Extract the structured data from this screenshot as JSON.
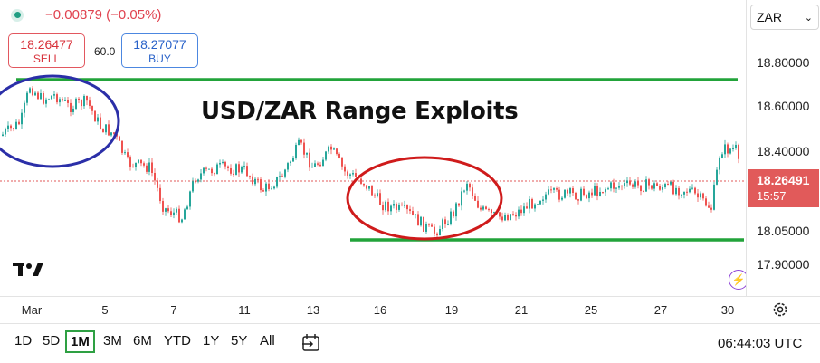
{
  "header": {
    "change": "−0.00879 (−0.05%)",
    "sell_price": "18.26477",
    "sell_label": "SELL",
    "spread": "60.0",
    "buy_price": "18.27077",
    "buy_label": "BUY"
  },
  "annotation_title": "USD/ZAR Range Exploits",
  "currency": "ZAR",
  "price_labels": [
    "18.80000",
    "18.60000",
    "18.40000",
    "18.05000",
    "17.90000"
  ],
  "current_price": "18.26491",
  "countdown": "15:57",
  "time_labels": [
    "Mar",
    "5",
    "7",
    "11",
    "13",
    "16",
    "19",
    "21",
    "25",
    "27",
    "30"
  ],
  "timeframes": [
    "1D",
    "5D",
    "1M",
    "3M",
    "6M",
    "YTD",
    "1Y",
    "5Y",
    "All"
  ],
  "active_timeframe": "1M",
  "clock": "06:44:03 UTC",
  "colors": {
    "up": "#26a69a",
    "down": "#ef5350",
    "range_line": "#22a33a",
    "ellipse_blue": "#2b2fa8",
    "ellipse_red": "#cf1b1b",
    "price_tag": "#e15a5a"
  },
  "icons": [
    "market-open-dot-icon",
    "tradingview-logo-icon",
    "lightning-icon",
    "chevron-down-icon",
    "settings-gear-icon",
    "compare-icon"
  ]
}
